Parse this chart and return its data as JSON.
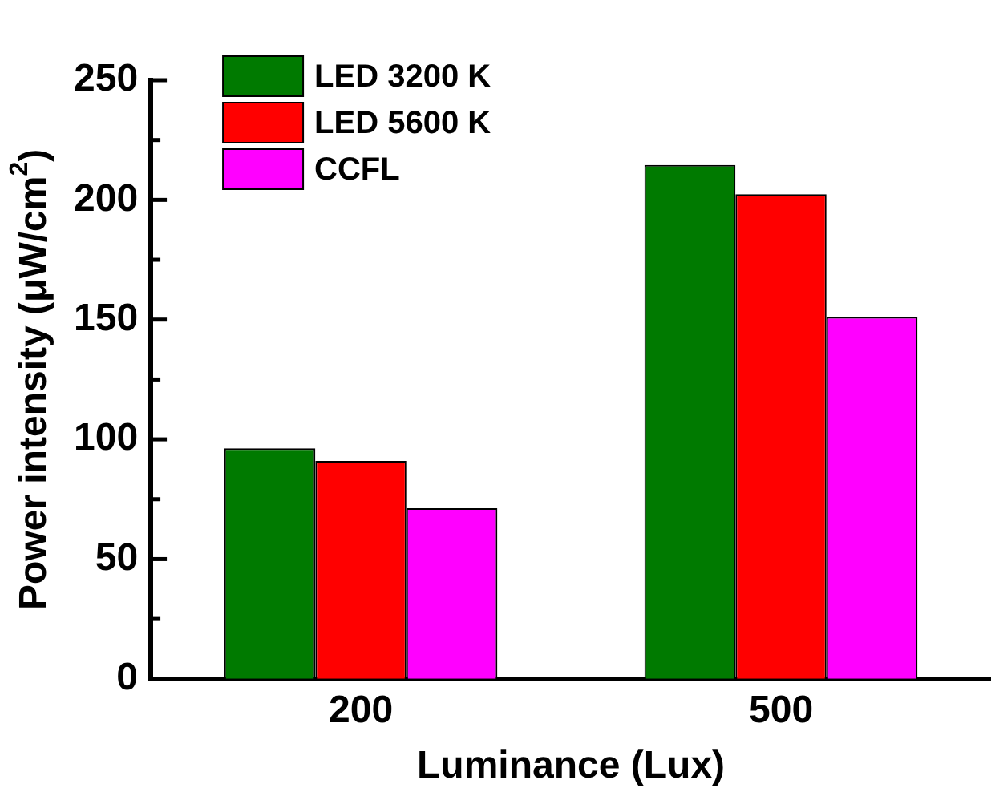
{
  "chart_data": {
    "type": "bar",
    "xlabel": "Luminance (Lux)",
    "ylabel": "Power intensity (μW/cm$^{2}$)",
    "categories": [
      "200",
      "500"
    ],
    "series": [
      {
        "name": "LED 3200 K",
        "color": "#007a00",
        "values": [
          96.3,
          214.6
        ]
      },
      {
        "name": "LED 5600 K",
        "color": "#ff0000",
        "values": [
          91,
          202.4
        ]
      },
      {
        "name": "CCFL",
        "color": "#ff00ff",
        "values": [
          71.2,
          151.1
        ]
      }
    ],
    "ylim": [
      0,
      250
    ],
    "yticks": [
      0,
      {
        "value": 25,
        "label": null
      },
      50,
      {
        "value": 75,
        "label": null
      },
      100,
      {
        "value": 125,
        "label": null
      },
      150,
      {
        "value": 175,
        "label": null
      },
      200,
      {
        "value": 225,
        "label": null
      },
      250
    ],
    "legend": "top left"
  }
}
